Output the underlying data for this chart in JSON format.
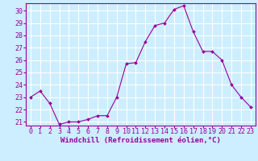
{
  "x": [
    0,
    1,
    2,
    3,
    4,
    5,
    6,
    7,
    8,
    9,
    10,
    11,
    12,
    13,
    14,
    15,
    16,
    17,
    18,
    19,
    20,
    21,
    22,
    23
  ],
  "y": [
    23,
    23.5,
    22.5,
    20.8,
    21,
    21,
    21.2,
    21.5,
    21.5,
    23,
    25.7,
    25.8,
    27.5,
    28.8,
    29,
    30.1,
    30.4,
    28.3,
    26.7,
    26.7,
    26,
    24,
    23,
    22.2
  ],
  "line_color": "#990099",
  "marker": "D",
  "marker_size": 2.0,
  "bg_color": "#cceeff",
  "grid_color": "#ffffff",
  "xlabel": "Windchill (Refroidissement éolien,°C)",
  "xlabel_color": "#990099",
  "tick_color": "#990099",
  "ylim": [
    20.7,
    30.6
  ],
  "xlim": [
    -0.5,
    23.5
  ],
  "yticks": [
    21,
    22,
    23,
    24,
    25,
    26,
    27,
    28,
    29,
    30
  ],
  "xticks": [
    0,
    1,
    2,
    3,
    4,
    5,
    6,
    7,
    8,
    9,
    10,
    11,
    12,
    13,
    14,
    15,
    16,
    17,
    18,
    19,
    20,
    21,
    22,
    23
  ],
  "fontsize_xlabel": 6.5,
  "fontsize_ticks": 6.0
}
